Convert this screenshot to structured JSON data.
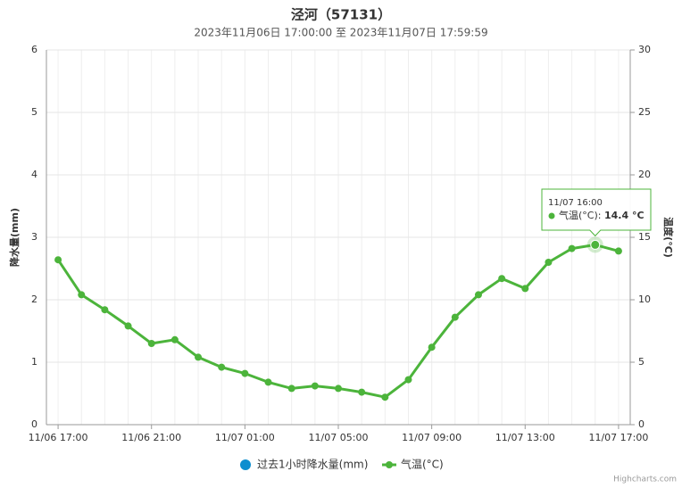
{
  "chart_data": {
    "type": "line",
    "title": "泾河（57131）",
    "subtitle": "2023年11月06日 17:00:00 至 2023年11月07日 17:59:59",
    "categories": [
      "11/06 17:00",
      null,
      null,
      null,
      "11/06 21:00",
      null,
      null,
      null,
      "11/07 01:00",
      null,
      null,
      null,
      "11/07 05:00",
      null,
      null,
      null,
      "11/07 09:00",
      null,
      null,
      null,
      "11/07 13:00",
      null,
      null,
      null,
      "11/07 17:00"
    ],
    "ylabel": "降水量(mm)",
    "ylim": [
      0,
      6
    ],
    "yticks": [
      0,
      1,
      2,
      3,
      4,
      5,
      6
    ],
    "y2label": "温度(°C)",
    "y2lim": [
      0,
      30
    ],
    "y2ticks": [
      0,
      5,
      10,
      15,
      20,
      25,
      30
    ],
    "grid": true,
    "series": [
      {
        "name": "过去1小时降水量(mm)",
        "color": "#0d8ecf",
        "values": [
          null,
          null,
          null,
          null,
          null,
          null,
          null,
          null,
          null,
          null,
          null,
          null,
          null,
          null,
          null,
          null,
          null,
          null,
          null,
          null,
          null,
          null,
          null,
          null,
          null
        ]
      },
      {
        "name": "气温(°C)",
        "color": "#4cb43b",
        "axis": "y2",
        "values": [
          13.2,
          10.4,
          9.2,
          7.9,
          6.5,
          6.8,
          5.4,
          4.6,
          4.1,
          3.4,
          2.9,
          3.1,
          2.9,
          2.6,
          2.2,
          3.6,
          6.2,
          8.6,
          10.4,
          11.7,
          10.9,
          13.0,
          14.1,
          14.4,
          13.9
        ]
      }
    ],
    "tooltip": {
      "x": "11/07 16:00",
      "series": "气温(°C): ",
      "label": "14.4 °C"
    },
    "credits": "Highcharts.com"
  }
}
